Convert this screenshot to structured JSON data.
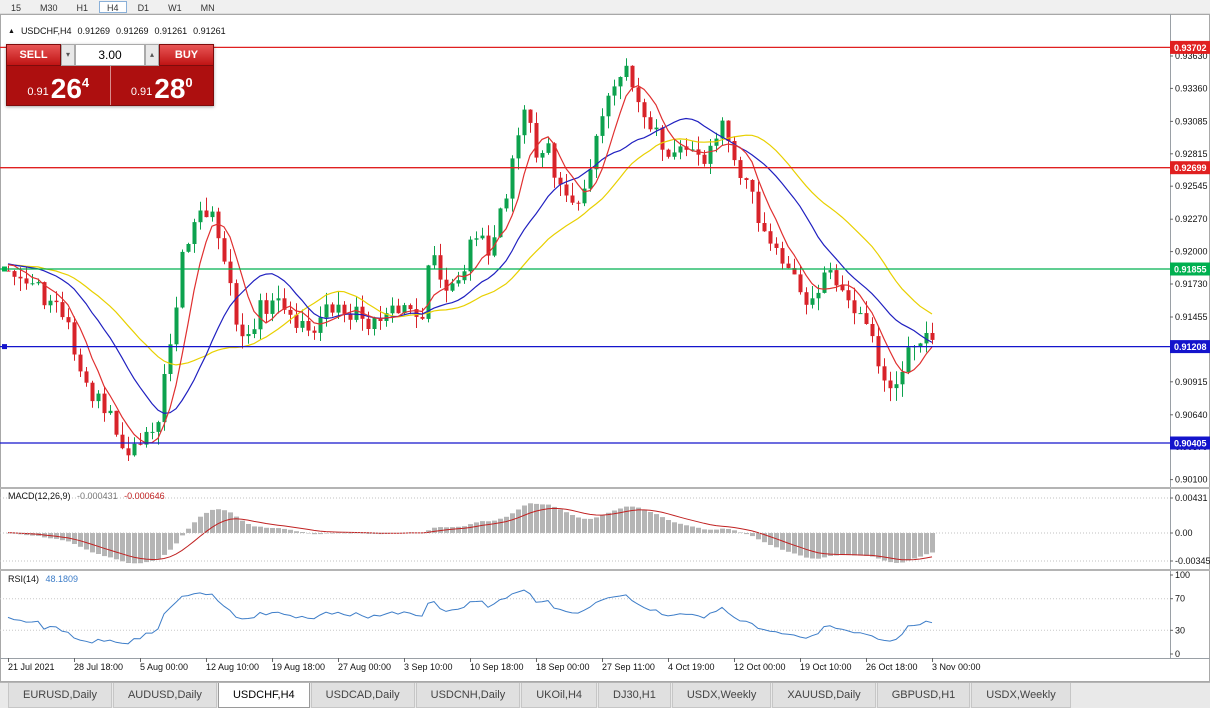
{
  "toolbar": {
    "timeframes": [
      "15",
      "M30",
      "H1",
      "H4",
      "D1",
      "W1",
      "MN"
    ],
    "active": "H4"
  },
  "icons": {
    "chart_marker": "▲",
    "volume_up": "▴",
    "volume_down": "▾"
  },
  "chart": {
    "symbol_title": "USDCHF,H4",
    "ohlc": {
      "open": "0.91269",
      "high": "0.91269",
      "low": "0.91261",
      "close": "0.91261"
    },
    "trade_panel": {
      "sell_label": "SELL",
      "buy_label": "BUY",
      "volume": "3.00",
      "sell_price": {
        "prefix": "0.91",
        "big": "26",
        "sup": "4"
      },
      "buy_price": {
        "prefix": "0.91",
        "big": "28",
        "sup": "0"
      }
    },
    "price_axis_ticks": [
      "0.93630",
      "0.93360",
      "0.93085",
      "0.92815",
      "0.92545",
      "0.92270",
      "0.92000",
      "0.91730",
      "0.91455",
      "0.91185",
      "0.90915",
      "0.90640",
      "0.90370",
      "0.90100"
    ],
    "hlines": [
      {
        "label": "0.93702",
        "price": 0.93702,
        "color": "#e02020",
        "selected": false
      },
      {
        "label": "0.92699",
        "price": 0.92699,
        "color": "#e02020",
        "selected": false
      },
      {
        "label": "0.91855",
        "price": 0.91855,
        "color": "#00b050",
        "selected": true
      },
      {
        "label": "0.91208",
        "price": 0.91208,
        "color": "#1414cc",
        "selected": true
      },
      {
        "label": "0.90405",
        "price": 0.90405,
        "color": "#1414cc",
        "selected": false
      }
    ],
    "time_axis_ticks": [
      "21 Jul 2021",
      "28 Jul 18:00",
      "5 Aug 00:00",
      "12 Aug 10:00",
      "19 Aug 18:00",
      "27 Aug 00:00",
      "3 Sep 10:00",
      "10 Sep 18:00",
      "18 Sep 00:00",
      "27 Sep 11:00",
      "4 Oct 19:00",
      "12 Oct 00:00",
      "19 Oct 10:00",
      "26 Oct 18:00",
      "3 Nov 00:00"
    ]
  },
  "macd_panel": {
    "label": "MACD(12,26,9)",
    "value_main": "-0.000431",
    "value_signal": "-0.000646",
    "axis_ticks": [
      {
        "label": "0.00431",
        "value": 0.00431
      },
      {
        "label": "0.00",
        "value": 0
      },
      {
        "label": "-0.00345",
        "value": -0.00345
      }
    ]
  },
  "rsi_panel": {
    "label": "RSI(14)",
    "value": "48.1809",
    "axis_ticks": [
      {
        "label": "100",
        "value": 100
      },
      {
        "label": "70",
        "value": 70
      },
      {
        "label": "30",
        "value": 30
      },
      {
        "label": "0",
        "value": 0
      }
    ],
    "levels": [
      70,
      30
    ]
  },
  "tabs": {
    "items": [
      "EURUSD,Daily",
      "AUDUSD,Daily",
      "USDCHF,H4",
      "USDCAD,Daily",
      "USDCNH,Daily",
      "UKOil,H4",
      "DJ30,H1",
      "USDX,Weekly",
      "XAUUSD,Daily",
      "GBPUSD,H1",
      "USDX,Weekly"
    ],
    "active_index": 2
  },
  "chart_data": {
    "type": "candlestick",
    "symbol": "USDCHF",
    "timeframe": "H4",
    "visible_price_range": [
      0.901,
      0.9388
    ],
    "current_bid": 0.91264,
    "current_ask": 0.9128,
    "indicators": [
      "MACD(12,26,9)",
      "RSI(14)"
    ],
    "anchors": [
      [
        0.0,
        0.919
      ],
      [
        0.024,
        0.9172
      ],
      [
        0.056,
        0.915
      ],
      [
        0.089,
        0.9082
      ],
      [
        0.108,
        0.9062
      ],
      [
        0.127,
        0.9032
      ],
      [
        0.143,
        0.9042
      ],
      [
        0.16,
        0.9055
      ],
      [
        0.176,
        0.912
      ],
      [
        0.192,
        0.9205
      ],
      [
        0.209,
        0.9238
      ],
      [
        0.222,
        0.923
      ],
      [
        0.235,
        0.9186
      ],
      [
        0.246,
        0.9146
      ],
      [
        0.257,
        0.9124
      ],
      [
        0.273,
        0.9152
      ],
      [
        0.294,
        0.9158
      ],
      [
        0.316,
        0.914
      ],
      [
        0.328,
        0.9136
      ],
      [
        0.349,
        0.9152
      ],
      [
        0.371,
        0.9149
      ],
      [
        0.403,
        0.914
      ],
      [
        0.425,
        0.9154
      ],
      [
        0.447,
        0.915
      ],
      [
        0.458,
        0.9196
      ],
      [
        0.474,
        0.9171
      ],
      [
        0.49,
        0.9185
      ],
      [
        0.506,
        0.921
      ],
      [
        0.519,
        0.9202
      ],
      [
        0.534,
        0.9236
      ],
      [
        0.552,
        0.9298
      ],
      [
        0.56,
        0.9322
      ],
      [
        0.571,
        0.928
      ],
      [
        0.582,
        0.9287
      ],
      [
        0.593,
        0.9262
      ],
      [
        0.604,
        0.9245
      ],
      [
        0.615,
        0.9237
      ],
      [
        0.626,
        0.926
      ],
      [
        0.637,
        0.93
      ],
      [
        0.647,
        0.9325
      ],
      [
        0.658,
        0.9344
      ],
      [
        0.666,
        0.9356
      ],
      [
        0.674,
        0.9341
      ],
      [
        0.68,
        0.9332
      ],
      [
        0.691,
        0.9312
      ],
      [
        0.702,
        0.9302
      ],
      [
        0.713,
        0.9279
      ],
      [
        0.724,
        0.9286
      ],
      [
        0.735,
        0.9278
      ],
      [
        0.745,
        0.9282
      ],
      [
        0.756,
        0.9278
      ],
      [
        0.767,
        0.9294
      ],
      [
        0.772,
        0.9304
      ],
      [
        0.783,
        0.9279
      ],
      [
        0.794,
        0.9266
      ],
      [
        0.805,
        0.9245
      ],
      [
        0.816,
        0.922
      ],
      [
        0.832,
        0.9195
      ],
      [
        0.848,
        0.9178
      ],
      [
        0.859,
        0.9161
      ],
      [
        0.875,
        0.917
      ],
      [
        0.886,
        0.9185
      ],
      [
        0.902,
        0.916
      ],
      [
        0.919,
        0.9145
      ],
      [
        0.935,
        0.9128
      ],
      [
        0.946,
        0.9095
      ],
      [
        0.957,
        0.9078
      ],
      [
        0.967,
        0.9102
      ],
      [
        0.978,
        0.9118
      ],
      [
        0.989,
        0.9127
      ],
      [
        1.0,
        0.9126
      ]
    ],
    "colors": {
      "bull": "#0da24e",
      "bear": "#d8232a",
      "ma_fast": "#e03030",
      "ma_mid": "#2020c0",
      "ma_slow": "#e8d000",
      "macd_hist": "#b5b5b5",
      "macd_signal": "#c02222",
      "rsi": "#3d7dc8"
    }
  }
}
